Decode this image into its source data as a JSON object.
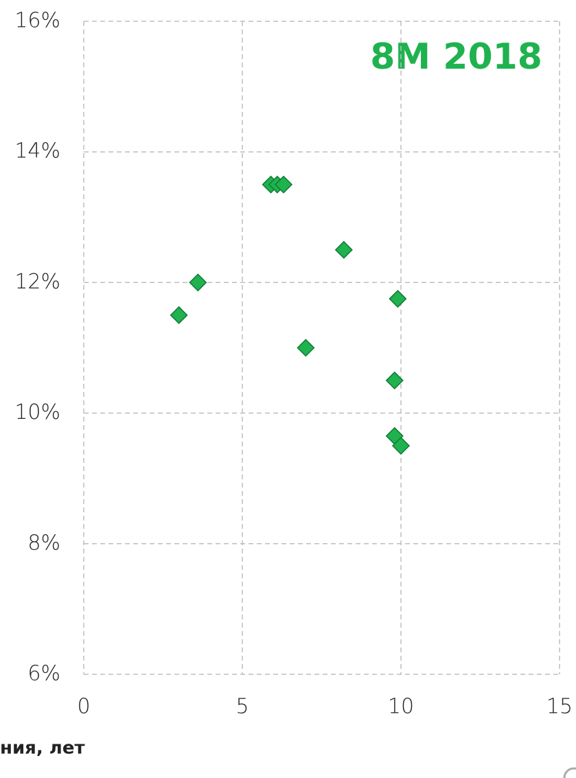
{
  "chart_data": {
    "type": "scatter",
    "annotation": "8M 2018",
    "xlabel": "ния, лет",
    "color": "#1fb24f",
    "grid": true,
    "xlim": [
      0,
      15
    ],
    "ylim": [
      6,
      16
    ],
    "xticks": [
      0,
      5,
      10,
      15
    ],
    "yticks": [
      {
        "value": 6,
        "label": "6%"
      },
      {
        "value": 8,
        "label": "8%"
      },
      {
        "value": 10,
        "label": "10%"
      },
      {
        "value": 12,
        "label": "12%"
      },
      {
        "value": 14,
        "label": "14%"
      },
      {
        "value": 16,
        "label": "16%"
      }
    ],
    "x": [
      3.0,
      3.6,
      5.9,
      6.1,
      6.3,
      7.0,
      8.2,
      9.9,
      9.8,
      9.8,
      10.0
    ],
    "values": [
      11.5,
      12.0,
      13.5,
      13.5,
      13.5,
      11.0,
      12.5,
      11.75,
      10.5,
      9.65,
      9.5
    ]
  }
}
